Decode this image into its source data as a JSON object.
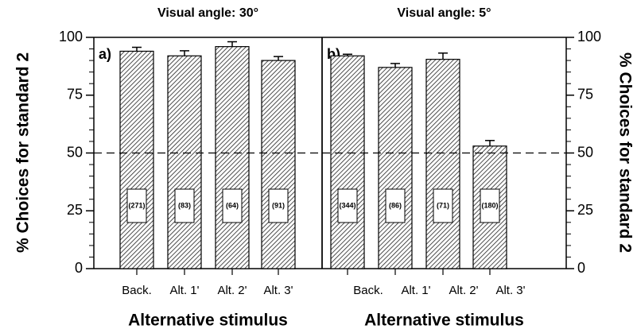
{
  "chart_data": [
    {
      "type": "bar",
      "title": "Visual angle: 30°",
      "panel_label": "a)",
      "categories": [
        "Back.",
        "Alt. 1'",
        "Alt. 2'",
        "Alt. 3'"
      ],
      "values": [
        94,
        92,
        96,
        90
      ],
      "errors": [
        1.7,
        2.2,
        2.1,
        1.7
      ],
      "counts": [
        "(271)",
        "(83)",
        "(64)",
        "(91)"
      ],
      "xlabel": "Alternative stimulus",
      "ylabel": "% Choices for standard 2",
      "y_axis_side": "left",
      "ylim": [
        0,
        100
      ],
      "yticks": [
        0,
        25,
        50,
        75,
        100
      ],
      "reference_line": 50
    },
    {
      "type": "bar",
      "title": "Visual angle: 5°",
      "panel_label": "b)",
      "categories": [
        "Back.",
        "Alt. 1'",
        "Alt. 2'",
        "Alt. 3'"
      ],
      "values": [
        92,
        87,
        90.5,
        53
      ],
      "errors": [
        0.7,
        1.7,
        2.7,
        2.4
      ],
      "counts": [
        "(344)",
        "(86)",
        "(71)",
        "(180)"
      ],
      "xlabel": "Alternative stimulus",
      "ylabel": "% Choices for standard 2",
      "y_axis_side": "right",
      "ylim": [
        0,
        100
      ],
      "yticks": [
        0,
        25,
        50,
        75,
        100
      ],
      "reference_line": 50
    }
  ]
}
